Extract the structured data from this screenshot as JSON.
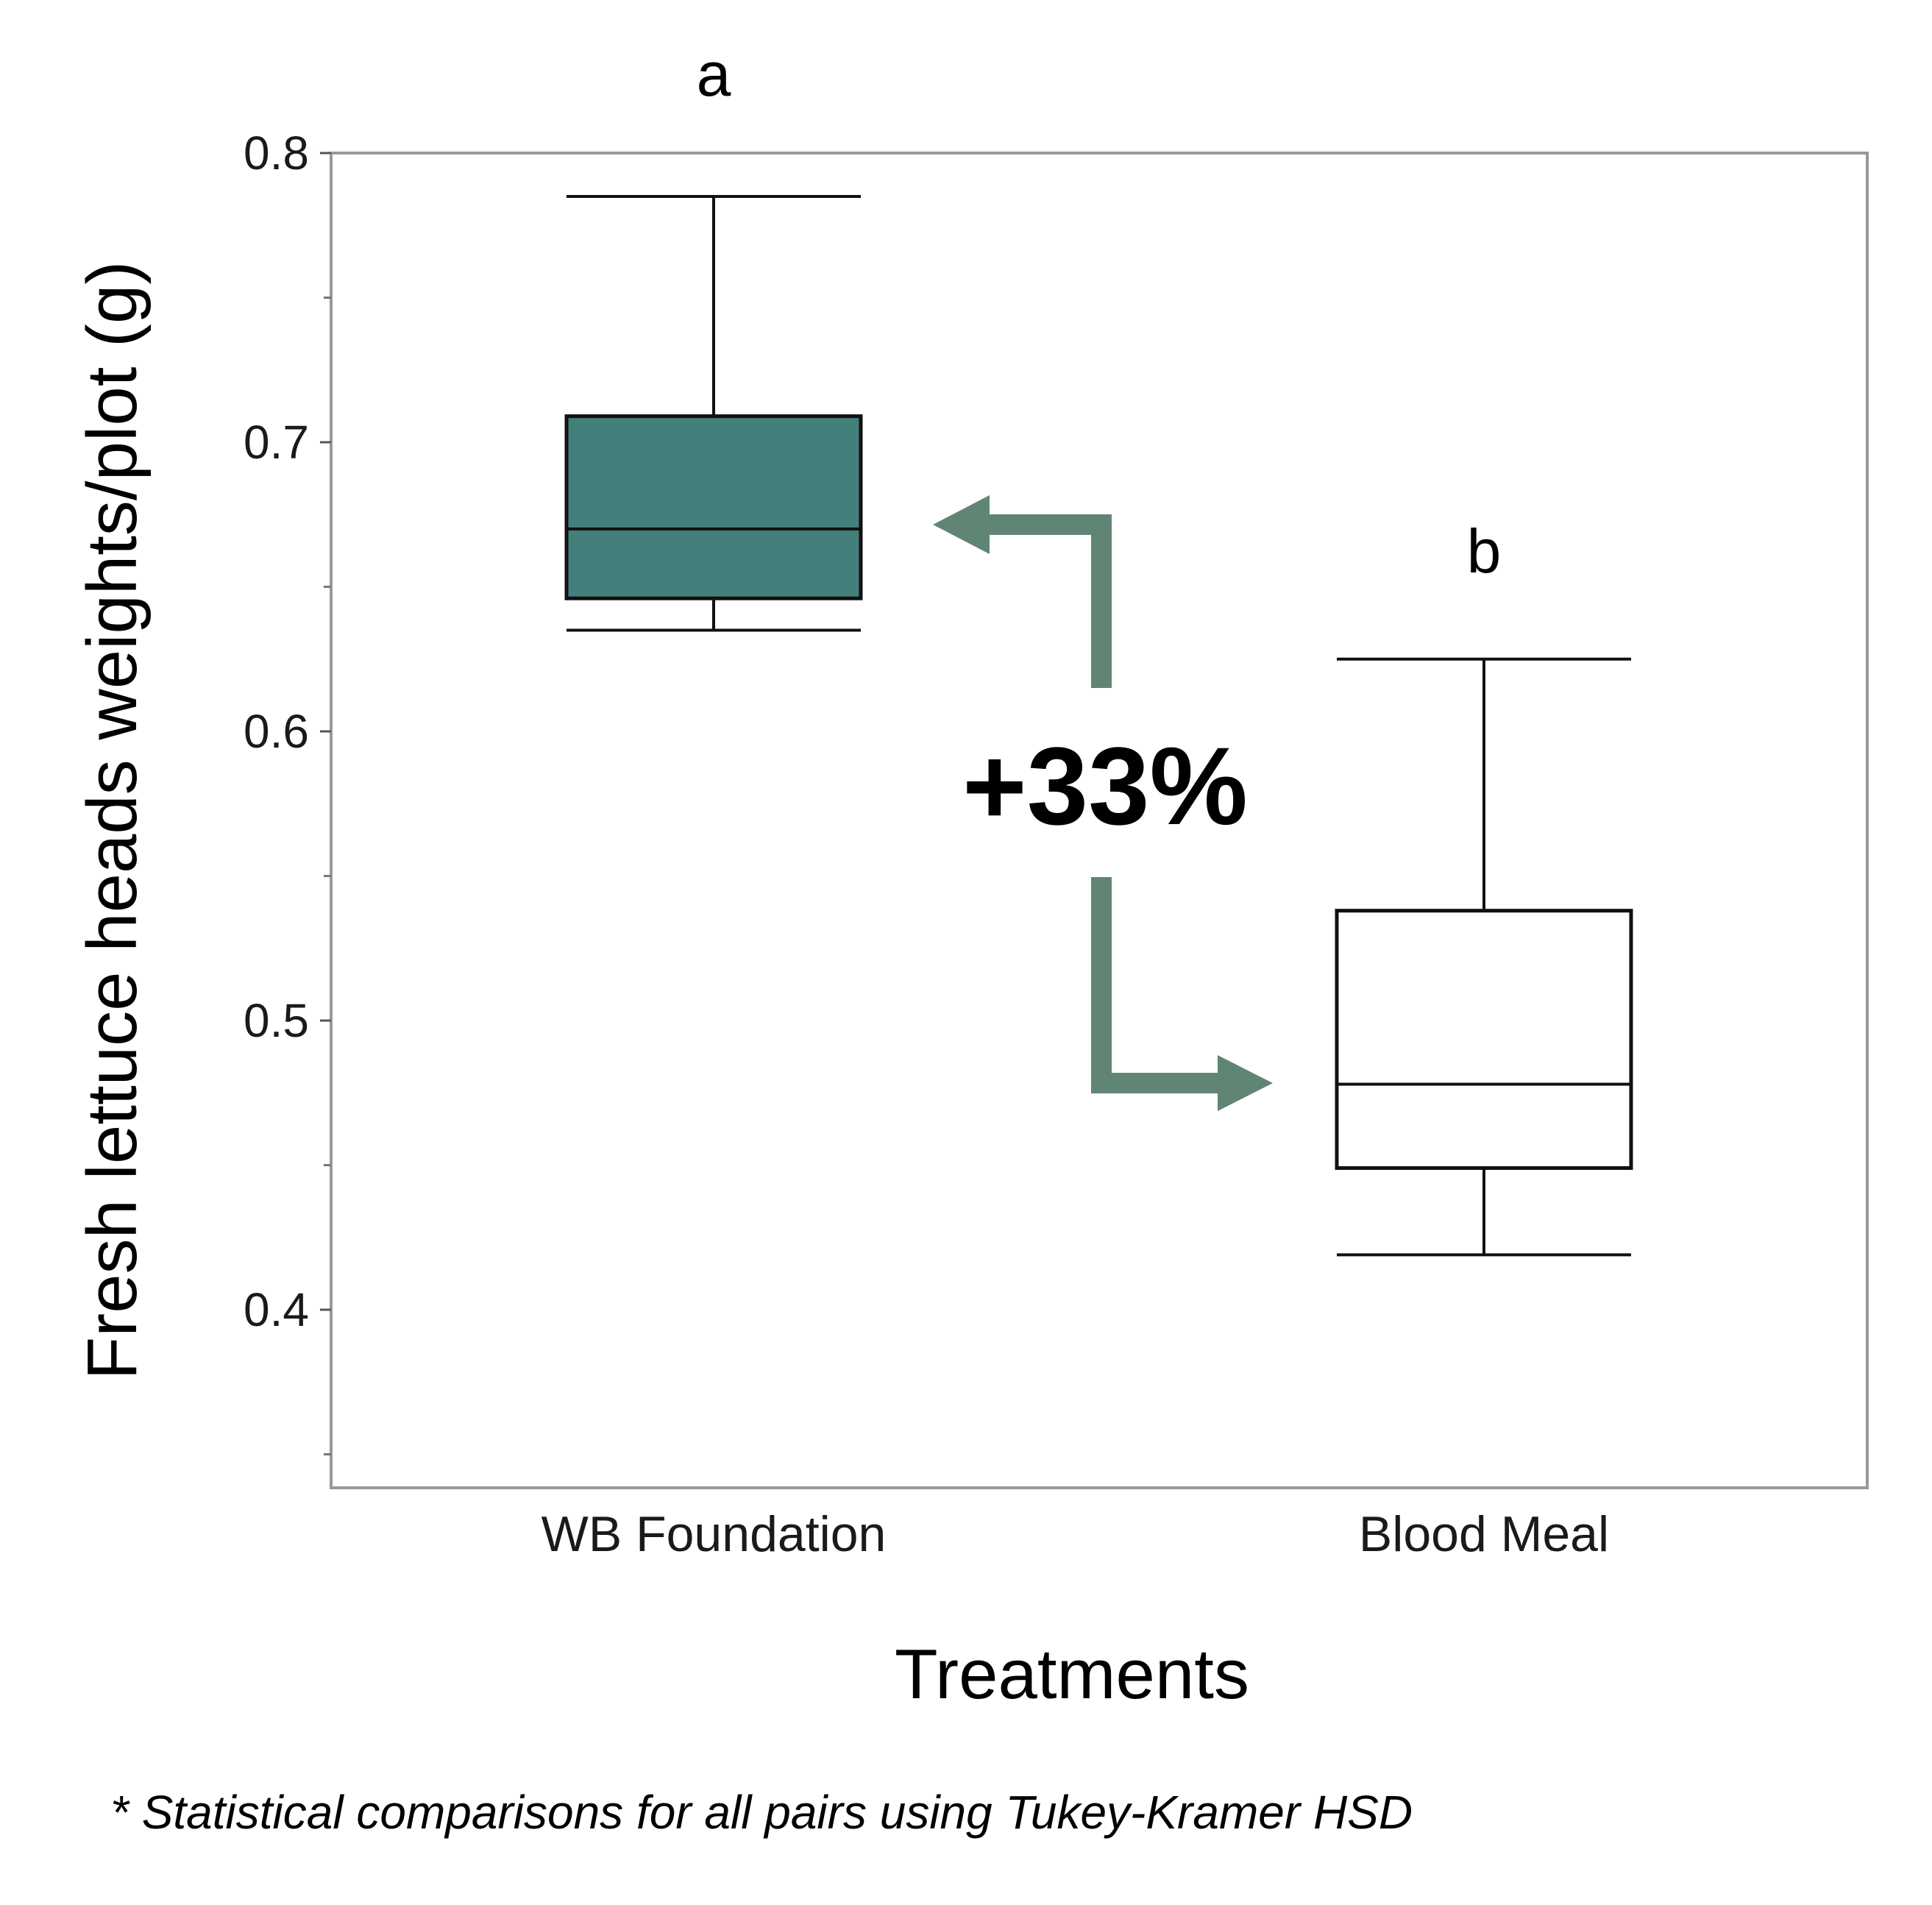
{
  "chart_data": {
    "type": "boxplot",
    "title": "",
    "xlabel": "Treatments",
    "ylabel": "Fresh lettuce heads weights/plot (g)",
    "ylim": [
      0.35,
      0.8
    ],
    "yticks": [
      "0.4",
      "0.5",
      "0.6",
      "0.7",
      "0.8"
    ],
    "grid": false,
    "categories": [
      "WB Foundation",
      "Blood Meal"
    ],
    "boxes": [
      {
        "name": "WB Foundation",
        "min": 0.635,
        "q1": 0.646,
        "median": 0.67,
        "q3": 0.709,
        "max": 0.785,
        "fill": "#437f7b",
        "letter": "a"
      },
      {
        "name": "Blood Meal",
        "min": 0.419,
        "q1": 0.449,
        "median": 0.478,
        "q3": 0.538,
        "max": 0.625,
        "fill": "#ffffff",
        "letter": "b"
      }
    ],
    "annotation": {
      "text": "+33%",
      "arrow_color": "#618574"
    },
    "footnote": "* Statistical comparisons for all pairs using Tukey-Kramer HSD"
  }
}
